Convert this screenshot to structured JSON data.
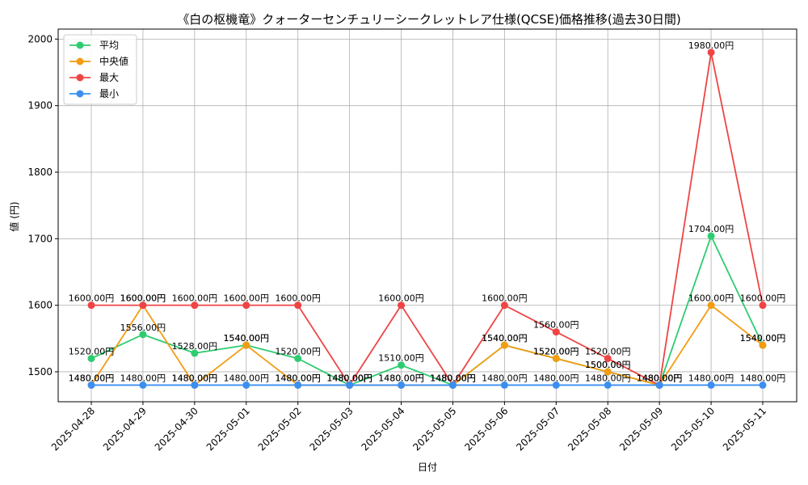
{
  "chart_data": {
    "type": "line",
    "title": "《白の枢機竜》クォーターセンチュリーシークレットレア仕様(QCSE)価格推移(過去30日間)",
    "xlabel": "日付",
    "ylabel": "値 (円)",
    "ylim": [
      1455,
      2015
    ],
    "yticks": [
      1500,
      1600,
      1700,
      1800,
      1900,
      2000
    ],
    "grid": true,
    "legend_position": "top-left",
    "label_suffix": "円",
    "categories": [
      "2025-04-28",
      "2025-04-29",
      "2025-04-30",
      "2025-05-01",
      "2025-05-02",
      "2025-05-03",
      "2025-05-04",
      "2025-05-05",
      "2025-05-06",
      "2025-05-07",
      "2025-05-08",
      "2025-05-09",
      "2025-05-10",
      "2025-05-11"
    ],
    "series": [
      {
        "name": "平均",
        "color": "#2ecc71",
        "values": [
          1520,
          1556,
          1528,
          1540,
          1520,
          1480,
          1510,
          1480,
          1540,
          1520,
          1500,
          1480,
          1704,
          1540
        ]
      },
      {
        "name": "中央値",
        "color": "#f39c12",
        "values": [
          1480,
          1600,
          1480,
          1540,
          1480,
          1480,
          1480,
          1480,
          1540,
          1520,
          1500,
          1480,
          1600,
          1540
        ]
      },
      {
        "name": "最大",
        "color": "#ef4444",
        "values": [
          1600,
          1600,
          1600,
          1600,
          1600,
          1480,
          1600,
          1480,
          1600,
          1560,
          1520,
          1480,
          1980,
          1600
        ]
      },
      {
        "name": "最小",
        "color": "#3b8ff0",
        "values": [
          1480,
          1480,
          1480,
          1480,
          1480,
          1480,
          1480,
          1480,
          1480,
          1480,
          1480,
          1480,
          1480,
          1480
        ]
      }
    ]
  }
}
